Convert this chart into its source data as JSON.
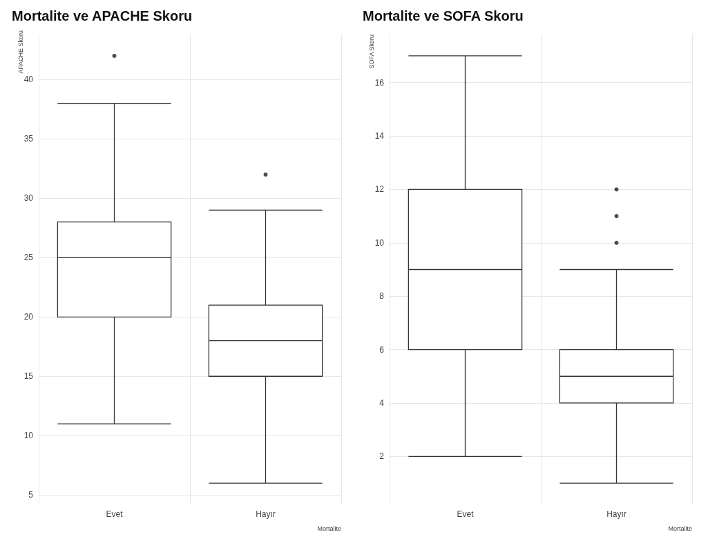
{
  "chart_data": [
    {
      "type": "box",
      "title": "Mortalite ve APACHE Skoru",
      "xlabel": "Mortalite",
      "ylabel": "APACHE Skoru",
      "categories": [
        "Evet",
        "Hayır"
      ],
      "ylim": [
        4.2,
        43.8
      ],
      "yticks": [
        5,
        10,
        15,
        20,
        25,
        30,
        35,
        40
      ],
      "grid": true,
      "boxes": [
        {
          "low": 11,
          "q1": 20,
          "median": 25,
          "q3": 28,
          "high": 38,
          "outliers": [
            42
          ]
        },
        {
          "low": 6,
          "q1": 15,
          "median": 18,
          "q3": 21,
          "high": 29,
          "outliers": [
            32
          ]
        }
      ]
    },
    {
      "type": "box",
      "title": "Mortalite ve SOFA Skoru",
      "xlabel": "Mortalite",
      "ylabel": "SOFA Skoru",
      "categories": [
        "Evet",
        "Hayır"
      ],
      "ylim": [
        0.2,
        17.8
      ],
      "yticks": [
        2,
        4,
        6,
        8,
        10,
        12,
        14,
        16
      ],
      "grid": true,
      "boxes": [
        {
          "low": 2,
          "q1": 6,
          "median": 9,
          "q3": 12,
          "high": 17
        },
        {
          "low": 1,
          "q1": 4,
          "median": 5,
          "q3": 6,
          "high": 9,
          "outliers": [
            10,
            11,
            12
          ]
        }
      ]
    }
  ]
}
